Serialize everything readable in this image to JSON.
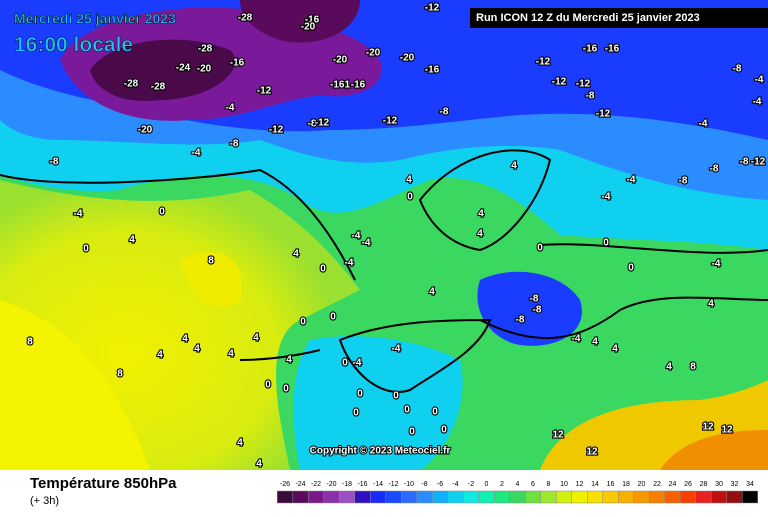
{
  "header": {
    "date": "Mercredi 25 janvier 2023",
    "time": "16:00 locale",
    "run": "Run ICON 12 Z du Mercredi 25 janvier 2023"
  },
  "copyright": "Copyright © 2023 Meteociel.fr",
  "footer": {
    "title": "Température 850hPa",
    "subtitle": "(+ 3h)"
  },
  "legend": {
    "ticks": [
      -26,
      -24,
      -22,
      -20,
      -18,
      -16,
      -14,
      -12,
      -10,
      -8,
      -6,
      -4,
      -2,
      0,
      2,
      4,
      6,
      8,
      10,
      12,
      14,
      16,
      18,
      20,
      22,
      24,
      26,
      28,
      30,
      32,
      34
    ]
  },
  "map_labels": [
    "-28",
    "-16",
    "-20",
    "-28",
    "-24",
    "-20",
    "-16",
    "-28",
    "-28",
    "-20",
    "-12",
    "-4",
    "-12",
    "-8",
    "-12",
    "-20",
    "-20",
    "-161",
    "-16",
    "-20",
    "-16",
    "-12",
    "-16",
    "-16",
    "-12",
    "-12",
    "-12",
    "-8",
    "-12",
    "-8",
    "-12",
    "-8",
    "-4",
    "-8",
    "-4",
    "0",
    "4",
    "0",
    "8",
    "4",
    "0",
    "-4",
    "-4",
    "-4",
    "4",
    "0",
    "4",
    "4",
    "4",
    "0",
    "0",
    "0",
    "-4",
    "-8",
    "-8",
    "4",
    "-8",
    "0",
    "0",
    "4",
    "4",
    "4",
    "8",
    "8",
    "4",
    "4",
    "4",
    "0",
    "0",
    "-4",
    "-4",
    "0",
    "0",
    "0",
    "0",
    "0",
    "0",
    "0",
    "0",
    "12",
    "12",
    "12",
    "12",
    "4",
    "4",
    "-4",
    "4",
    "4",
    "-4",
    "-4",
    "-8",
    "-8",
    "-12",
    "-8",
    "-4",
    "-4",
    "-4",
    "-8",
    "4",
    "8",
    "4"
  ]
}
